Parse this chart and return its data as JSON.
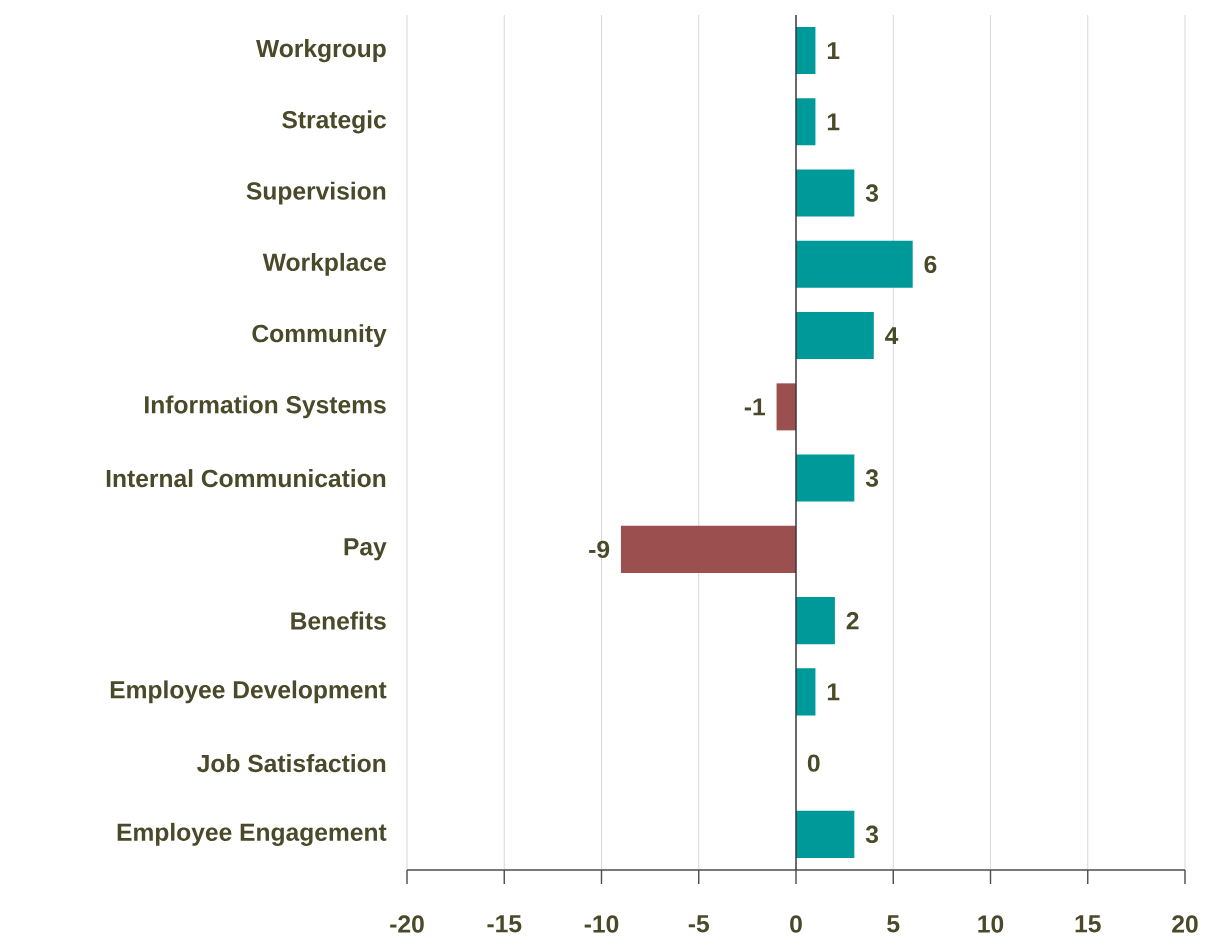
{
  "chart_data": {
    "type": "bar",
    "orientation": "horizontal",
    "categories": [
      "Workgroup",
      "Strategic",
      "Supervision",
      "Workplace",
      "Community",
      "Information Systems",
      "Internal Communication",
      "Pay",
      "Benefits",
      "Employee Development",
      "Job Satisfaction",
      "Employee Engagement"
    ],
    "values": [
      1,
      1,
      3,
      6,
      4,
      -1,
      3,
      -9,
      2,
      1,
      0,
      3
    ],
    "colors": [
      "#009999",
      "#009999",
      "#009999",
      "#009999",
      "#009999",
      "#9b4f4f",
      "#009999",
      "#9b4f4f",
      "#009999",
      "#009999",
      "#009999",
      "#009999"
    ],
    "xlim": [
      -20,
      20
    ],
    "xticks": [
      -20,
      -15,
      -10,
      -5,
      0,
      5,
      10,
      15,
      20
    ],
    "value_labels": [
      "1",
      "1",
      "3",
      "6",
      "4",
      "-1",
      "3",
      "-9",
      "2",
      "1",
      "0",
      "3"
    ],
    "grid": "x"
  }
}
